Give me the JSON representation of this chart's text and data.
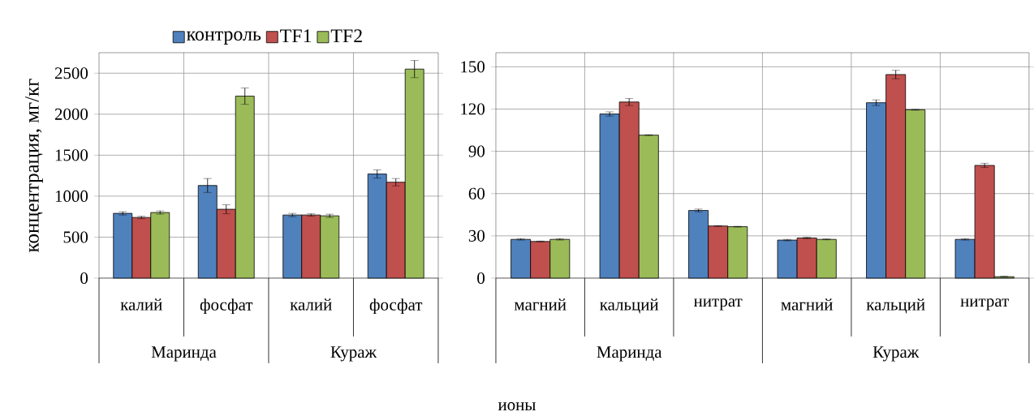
{
  "chart_data": [
    {
      "type": "bar",
      "ylabel": "концентрация, мг/кг",
      "xlabel": "ионы",
      "categories": [
        "калий",
        "фосфат",
        "калий",
        "фосфат"
      ],
      "annotations": [
        "Маринда",
        "Кураж"
      ],
      "ylim": [
        0,
        2750
      ],
      "yticks": [
        0,
        500,
        1000,
        1500,
        2000,
        2500
      ],
      "grid": true,
      "legend": "top",
      "series": [
        {
          "name": "контроль",
          "color": "#4f81bd",
          "values": [
            790,
            1130,
            770,
            1270
          ],
          "errors": [
            20,
            85,
            20,
            50
          ]
        },
        {
          "name": "TF1",
          "color": "#c0504d",
          "values": [
            740,
            840,
            770,
            1170
          ],
          "errors": [
            15,
            55,
            15,
            45
          ]
        },
        {
          "name": "TF2",
          "color": "#9bbb59",
          "values": [
            800,
            2220,
            760,
            2550
          ],
          "errors": [
            20,
            100,
            20,
            105
          ]
        }
      ]
    },
    {
      "type": "bar",
      "categories": [
        "магний",
        "кальций",
        "нитрат",
        "магний",
        "кальций",
        "нитрат"
      ],
      "annotations": [
        "Маринда",
        "Кураж"
      ],
      "ylim": [
        0,
        160
      ],
      "yticks": [
        0,
        30,
        60,
        90,
        120,
        150
      ],
      "grid": true,
      "series": [
        {
          "color": "#4f81bd",
          "values": [
            27.5,
            116.5,
            48,
            27,
            124.5,
            27.5
          ],
          "errors": [
            0.5,
            1.5,
            1,
            0.5,
            2,
            0.5
          ]
        },
        {
          "color": "#c0504d",
          "values": [
            26,
            125,
            37,
            28.5,
            144.5,
            80
          ],
          "errors": [
            0.3,
            2.5,
            0.3,
            0.5,
            3,
            1.5
          ]
        },
        {
          "color": "#9bbb59",
          "values": [
            27.5,
            101.5,
            36.5,
            27.5,
            119.5,
            1
          ],
          "errors": [
            0.5,
            0.3,
            0.3,
            0.3,
            0.3,
            0.3
          ]
        }
      ]
    }
  ]
}
